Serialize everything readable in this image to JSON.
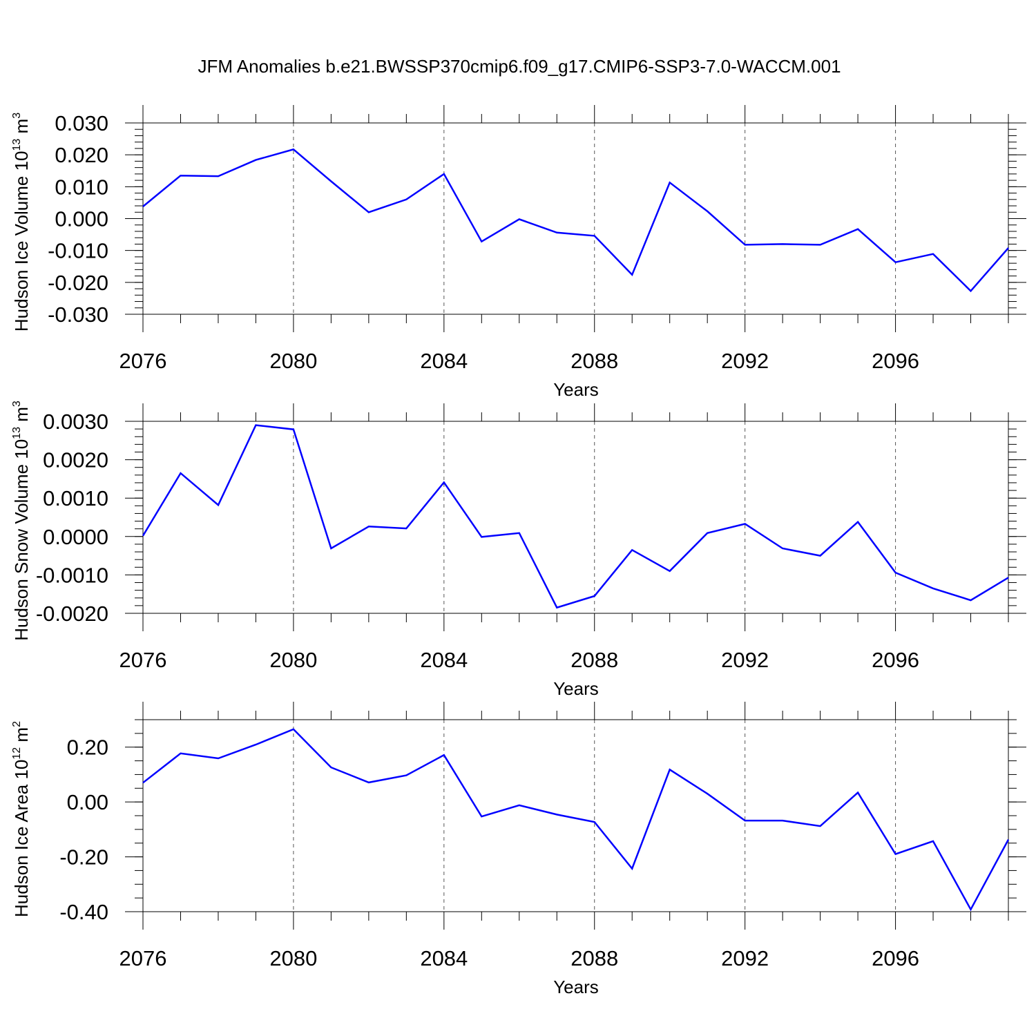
{
  "chart_data": [
    {
      "type": "line",
      "title": "JFM Anomalies b.e21.BWSSP370cmip6.f09_g17.CMIP6-SSP3-7.0-WACCM.001",
      "ylabel": {
        "main": "Hudson Ice Volume 10",
        "exp": "13",
        "unit": " m",
        "unit_exp": "3"
      },
      "xlabel": "Years",
      "xlim": [
        2076,
        2099
      ],
      "ylim": [
        -0.03,
        0.03
      ],
      "xticks": [
        2076,
        2080,
        2084,
        2088,
        2092,
        2096
      ],
      "xtick_labels": [
        "2076",
        "2080",
        "2084",
        "2088",
        "2092",
        "2096"
      ],
      "yticks": [
        -0.03,
        -0.02,
        -0.01,
        0.0,
        0.01,
        0.02,
        0.03
      ],
      "ytick_labels": [
        "-0.030",
        "-0.020",
        "-0.010",
        "0.000",
        "0.010",
        "0.020",
        "0.030"
      ],
      "grid_x": [
        2080,
        2084,
        2088,
        2092,
        2096
      ],
      "series": [
        {
          "name": "Hudson Ice Volume",
          "color": "#0000ff",
          "x": [
            2076,
            2077,
            2078,
            2079,
            2080,
            2081,
            2082,
            2083,
            2084,
            2085,
            2086,
            2087,
            2088,
            2089,
            2090,
            2091,
            2092,
            2093,
            2094,
            2095,
            2096,
            2097,
            2098,
            2099
          ],
          "y": [
            0.0038,
            0.0135,
            0.0133,
            0.0184,
            0.0217,
            0.0117,
            0.002,
            0.006,
            0.014,
            -0.0072,
            -0.0002,
            -0.0044,
            -0.0054,
            -0.0176,
            0.0113,
            0.0023,
            -0.0082,
            -0.008,
            -0.0082,
            -0.0033,
            -0.0137,
            -0.0111,
            -0.0227,
            -0.0092
          ]
        }
      ]
    },
    {
      "type": "line",
      "ylabel": {
        "main": "Hudson Snow Volume 10",
        "exp": "13",
        "unit": " m",
        "unit_exp": "3"
      },
      "xlabel": "Years",
      "xlim": [
        2076,
        2099
      ],
      "ylim": [
        -0.002,
        0.003
      ],
      "xticks": [
        2076,
        2080,
        2084,
        2088,
        2092,
        2096
      ],
      "xtick_labels": [
        "2076",
        "2080",
        "2084",
        "2088",
        "2092",
        "2096"
      ],
      "yticks": [
        -0.002,
        -0.001,
        0.0,
        0.001,
        0.002,
        0.003
      ],
      "ytick_labels": [
        "-0.0020",
        "-0.0010",
        "0.0000",
        "0.0010",
        "0.0020",
        "0.0030"
      ],
      "grid_x": [
        2080,
        2084,
        2088,
        2092,
        2096
      ],
      "series": [
        {
          "name": "Hudson Snow Volume",
          "color": "#0000ff",
          "x": [
            2076,
            2077,
            2078,
            2079,
            2080,
            2081,
            2082,
            2083,
            2084,
            2085,
            2086,
            2087,
            2088,
            2089,
            2090,
            2091,
            2092,
            2093,
            2094,
            2095,
            2096,
            2097,
            2098,
            2099
          ],
          "y": [
            2e-05,
            0.00165,
            0.00082,
            0.0029,
            0.00279,
            -0.00031,
            0.00026,
            0.00021,
            0.00141,
            -1e-05,
            9e-05,
            -0.00185,
            -0.00155,
            -0.00035,
            -0.0009,
            9e-05,
            0.00033,
            -0.00031,
            -0.0005,
            0.00038,
            -0.00094,
            -0.00135,
            -0.00166,
            -0.00107
          ]
        }
      ]
    },
    {
      "type": "line",
      "ylabel": {
        "main": "Hudson Ice Area 10",
        "exp": "12",
        "unit": " m",
        "unit_exp": "2"
      },
      "xlabel": "Years",
      "xlim": [
        2076,
        2099
      ],
      "ylim": [
        -0.4,
        0.3
      ],
      "xticks": [
        2076,
        2080,
        2084,
        2088,
        2092,
        2096
      ],
      "xtick_labels": [
        "2076",
        "2080",
        "2084",
        "2088",
        "2092",
        "2096"
      ],
      "yticks": [
        -0.4,
        -0.2,
        0.0,
        0.2
      ],
      "ytick_labels": [
        "-0.40",
        "-0.20",
        "0.00",
        "0.20"
      ],
      "grid_x": [
        2080,
        2084,
        2088,
        2092,
        2096
      ],
      "series": [
        {
          "name": "Hudson Ice Area",
          "color": "#0000ff",
          "x": [
            2076,
            2077,
            2078,
            2079,
            2080,
            2081,
            2082,
            2083,
            2084,
            2085,
            2086,
            2087,
            2088,
            2089,
            2090,
            2091,
            2092,
            2093,
            2094,
            2095,
            2096,
            2097,
            2098,
            2099
          ],
          "y": [
            0.07,
            0.177,
            0.159,
            0.209,
            0.265,
            0.126,
            0.071,
            0.097,
            0.171,
            -0.053,
            -0.012,
            -0.046,
            -0.073,
            -0.243,
            0.118,
            0.03,
            -0.068,
            -0.068,
            -0.088,
            0.034,
            -0.19,
            -0.143,
            -0.392,
            -0.137
          ]
        }
      ]
    }
  ]
}
